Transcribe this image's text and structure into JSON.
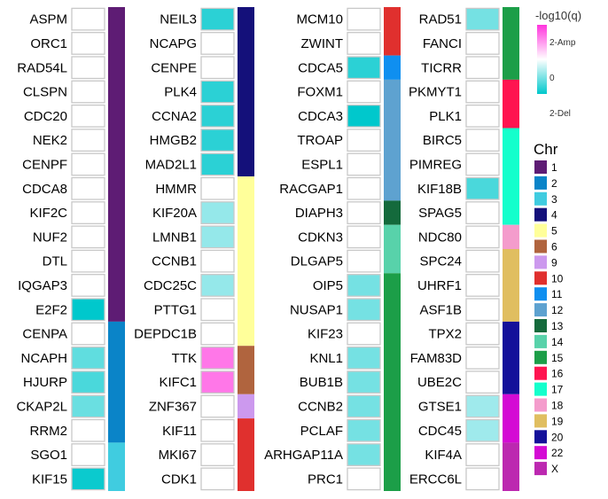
{
  "chart_data": {
    "type": "heatmap",
    "color_legend": {
      "title": "-log10(q)",
      "ticks": [
        "2-Amp",
        "0",
        "2-Del"
      ],
      "amp_color": "#ff33dd",
      "del_color": "#00c8cc",
      "zero_color": "#ffffff"
    },
    "chr_legend": {
      "title": "Chr",
      "items": [
        {
          "label": "1",
          "color": "#5e1c74"
        },
        {
          "label": "2",
          "color": "#0a84c8"
        },
        {
          "label": "3",
          "color": "#40cce0"
        },
        {
          "label": "4",
          "color": "#14107a"
        },
        {
          "label": "5",
          "color": "#ffff9a"
        },
        {
          "label": "6",
          "color": "#b0643e"
        },
        {
          "label": "9",
          "color": "#cc99ee"
        },
        {
          "label": "10",
          "color": "#e0302e"
        },
        {
          "label": "11",
          "color": "#0f8ff0"
        },
        {
          "label": "12",
          "color": "#5ea2d0"
        },
        {
          "label": "13",
          "color": "#146a3c"
        },
        {
          "label": "14",
          "color": "#58d2aa"
        },
        {
          "label": "15",
          "color": "#1c9e48"
        },
        {
          "label": "16",
          "color": "#ff1450"
        },
        {
          "label": "17",
          "color": "#14ffcc"
        },
        {
          "label": "18",
          "color": "#f49ccc"
        },
        {
          "label": "19",
          "color": "#e0be60"
        },
        {
          "label": "20",
          "color": "#14109a"
        },
        {
          "label": "22",
          "color": "#d40ad4"
        },
        {
          "label": "X",
          "color": "#bc28b0"
        }
      ]
    },
    "columns": [
      {
        "genes": [
          {
            "gene": "ASPM",
            "value": 0,
            "chr": "1"
          },
          {
            "gene": "ORC1",
            "value": 0,
            "chr": "1"
          },
          {
            "gene": "RAD54L",
            "value": 0,
            "chr": "1"
          },
          {
            "gene": "CLSPN",
            "value": 0,
            "chr": "1"
          },
          {
            "gene": "CDC20",
            "value": 0,
            "chr": "1"
          },
          {
            "gene": "NEK2",
            "value": 0,
            "chr": "1"
          },
          {
            "gene": "CENPF",
            "value": 0,
            "chr": "1"
          },
          {
            "gene": "CDCA8",
            "value": 0,
            "chr": "1"
          },
          {
            "gene": "KIF2C",
            "value": 0,
            "chr": "1"
          },
          {
            "gene": "NUF2",
            "value": 0,
            "chr": "1"
          },
          {
            "gene": "DTL",
            "value": 0,
            "chr": "1"
          },
          {
            "gene": "IQGAP3",
            "value": 0,
            "chr": "1"
          },
          {
            "gene": "E2F2",
            "value": -2.4,
            "chr": "1"
          },
          {
            "gene": "CENPA",
            "value": 0,
            "chr": "2"
          },
          {
            "gene": "NCAPH",
            "value": -1.5,
            "chr": "2"
          },
          {
            "gene": "HJURP",
            "value": -1.7,
            "chr": "2"
          },
          {
            "gene": "CKAP2L",
            "value": -1.4,
            "chr": "2"
          },
          {
            "gene": "RRM2",
            "value": 0,
            "chr": "2"
          },
          {
            "gene": "SGO1",
            "value": 0,
            "chr": "3"
          },
          {
            "gene": "KIF15",
            "value": -2.3,
            "chr": "3"
          }
        ]
      },
      {
        "genes": [
          {
            "gene": "NEIL3",
            "value": -2.0,
            "chr": "4"
          },
          {
            "gene": "NCAPG",
            "value": 0,
            "chr": "4"
          },
          {
            "gene": "CENPE",
            "value": 0,
            "chr": "4"
          },
          {
            "gene": "PLK4",
            "value": -2.0,
            "chr": "4"
          },
          {
            "gene": "CCNA2",
            "value": -2.0,
            "chr": "4"
          },
          {
            "gene": "HMGB2",
            "value": -2.0,
            "chr": "4"
          },
          {
            "gene": "MAD2L1",
            "value": -2.0,
            "chr": "4"
          },
          {
            "gene": "HMMR",
            "value": 0,
            "chr": "5"
          },
          {
            "gene": "KIF20A",
            "value": -1.0,
            "chr": "5"
          },
          {
            "gene": "LMNB1",
            "value": -1.0,
            "chr": "5"
          },
          {
            "gene": "CCNB1",
            "value": 0,
            "chr": "5"
          },
          {
            "gene": "CDC25C",
            "value": -1.0,
            "chr": "5"
          },
          {
            "gene": "PTTG1",
            "value": 0,
            "chr": "5"
          },
          {
            "gene": "DEPDC1B",
            "value": 0,
            "chr": "5"
          },
          {
            "gene": "TTK",
            "value": 1.6,
            "chr": "6"
          },
          {
            "gene": "KIFC1",
            "value": 1.6,
            "chr": "6"
          },
          {
            "gene": "ZNF367",
            "value": 0,
            "chr": "9"
          },
          {
            "gene": "KIF11",
            "value": 0,
            "chr": "10"
          },
          {
            "gene": "MKI67",
            "value": 0,
            "chr": "10"
          },
          {
            "gene": "CDK1",
            "value": 0,
            "chr": "10"
          }
        ]
      },
      {
        "genes": [
          {
            "gene": "MCM10",
            "value": 0,
            "chr": "10"
          },
          {
            "gene": "ZWINT",
            "value": 0,
            "chr": "10"
          },
          {
            "gene": "CDCA5",
            "value": -2.0,
            "chr": "11"
          },
          {
            "gene": "FOXM1",
            "value": 0,
            "chr": "12"
          },
          {
            "gene": "CDCA3",
            "value": -2.4,
            "chr": "12"
          },
          {
            "gene": "TROAP",
            "value": 0,
            "chr": "12"
          },
          {
            "gene": "ESPL1",
            "value": 0,
            "chr": "12"
          },
          {
            "gene": "RACGAP1",
            "value": 0,
            "chr": "12"
          },
          {
            "gene": "DIAPH3",
            "value": 0,
            "chr": "13"
          },
          {
            "gene": "CDKN3",
            "value": 0,
            "chr": "14"
          },
          {
            "gene": "DLGAP5",
            "value": 0,
            "chr": "14"
          },
          {
            "gene": "OIP5",
            "value": -1.3,
            "chr": "15"
          },
          {
            "gene": "NUSAP1",
            "value": -1.3,
            "chr": "15"
          },
          {
            "gene": "KIF23",
            "value": 0,
            "chr": "15"
          },
          {
            "gene": "KNL1",
            "value": -1.3,
            "chr": "15"
          },
          {
            "gene": "BUB1B",
            "value": -1.3,
            "chr": "15"
          },
          {
            "gene": "CCNB2",
            "value": -1.3,
            "chr": "15"
          },
          {
            "gene": "PCLAF",
            "value": -1.3,
            "chr": "15"
          },
          {
            "gene": "ARHGAP11A",
            "value": -1.3,
            "chr": "15"
          },
          {
            "gene": "PRC1",
            "value": 0,
            "chr": "15"
          }
        ]
      },
      {
        "genes": [
          {
            "gene": "RAD51",
            "value": -1.3,
            "chr": "15"
          },
          {
            "gene": "FANCI",
            "value": 0,
            "chr": "15"
          },
          {
            "gene": "TICRR",
            "value": 0,
            "chr": "15"
          },
          {
            "gene": "PKMYT1",
            "value": 0,
            "chr": "16"
          },
          {
            "gene": "PLK1",
            "value": 0,
            "chr": "16"
          },
          {
            "gene": "BIRC5",
            "value": 0,
            "chr": "17"
          },
          {
            "gene": "PIMREG",
            "value": 0,
            "chr": "17"
          },
          {
            "gene": "KIF18B",
            "value": -1.7,
            "chr": "17"
          },
          {
            "gene": "SPAG5",
            "value": 0,
            "chr": "17"
          },
          {
            "gene": "NDC80",
            "value": 0,
            "chr": "18"
          },
          {
            "gene": "SPC24",
            "value": 0,
            "chr": "19"
          },
          {
            "gene": "UHRF1",
            "value": 0,
            "chr": "19"
          },
          {
            "gene": "ASF1B",
            "value": 0,
            "chr": "19"
          },
          {
            "gene": "TPX2",
            "value": 0,
            "chr": "20"
          },
          {
            "gene": "FAM83D",
            "value": 0,
            "chr": "20"
          },
          {
            "gene": "UBE2C",
            "value": 0,
            "chr": "20"
          },
          {
            "gene": "GTSE1",
            "value": -0.9,
            "chr": "22"
          },
          {
            "gene": "CDC45",
            "value": -0.9,
            "chr": "22"
          },
          {
            "gene": "KIF4A",
            "value": 0,
            "chr": "X"
          },
          {
            "gene": "ERCC6L",
            "value": 0,
            "chr": "X"
          }
        ]
      }
    ]
  }
}
